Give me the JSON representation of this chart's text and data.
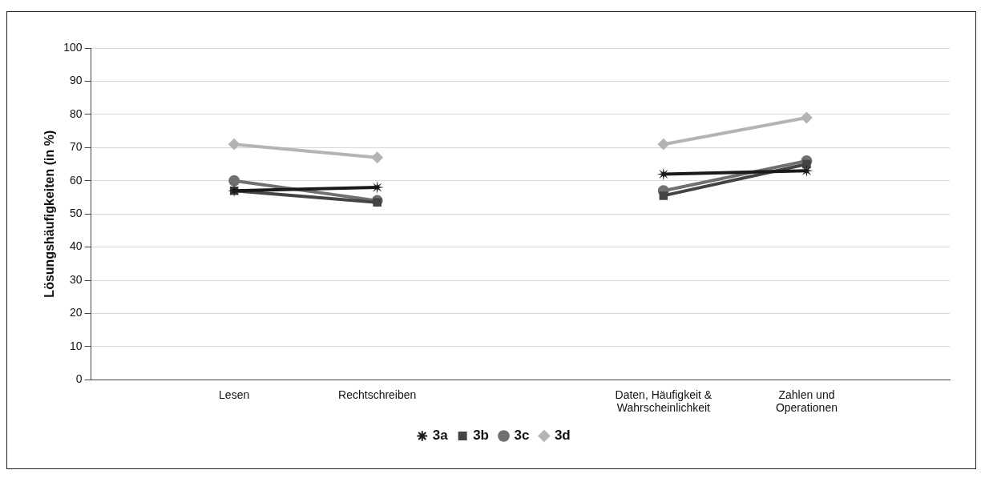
{
  "chart_data": {
    "type": "line",
    "ylabel": "Lösungshäufigkeiten (in %)",
    "categories": [
      null,
      "Lesen",
      "Rechtschreiben",
      null,
      "Daten, Häufigkeit & Wahrscheinlichkeit",
      "Zahlen und Operationen",
      null
    ],
    "series": [
      {
        "name": "3a",
        "color": "#1a1a1a",
        "marker": "star",
        "values": [
          null,
          57,
          58,
          null,
          62,
          63,
          null
        ]
      },
      {
        "name": "3b",
        "color": "#444444",
        "marker": "square",
        "values": [
          null,
          57,
          53.5,
          null,
          55.5,
          65,
          null
        ]
      },
      {
        "name": "3c",
        "color": "#707070",
        "marker": "circle",
        "values": [
          null,
          60,
          54,
          null,
          57,
          66,
          null
        ]
      },
      {
        "name": "3d",
        "color": "#b4b4b4",
        "marker": "diamond",
        "values": [
          null,
          71,
          67,
          null,
          71,
          79,
          null
        ]
      }
    ],
    "ylim": [
      0,
      100
    ],
    "yticks": [
      0,
      10,
      20,
      30,
      40,
      50,
      60,
      70,
      80,
      90,
      100
    ],
    "grid": "y",
    "legend": "bottom"
  }
}
